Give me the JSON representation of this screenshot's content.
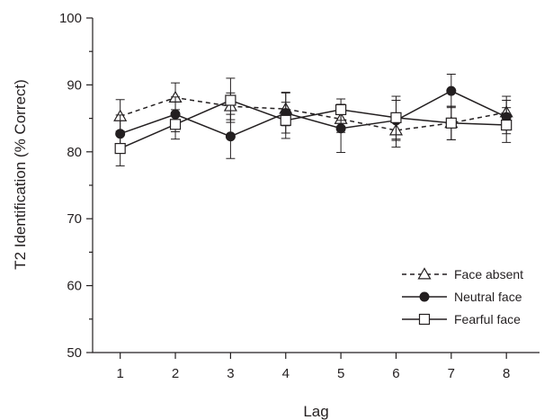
{
  "chart_data": {
    "type": "line",
    "xlabel": "Lag",
    "ylabel": "T2 Identification (% Correct)",
    "x": [
      1,
      2,
      3,
      4,
      5,
      6,
      7,
      8
    ],
    "xlim": [
      0.5,
      8.6
    ],
    "ylim": [
      50,
      100
    ],
    "yticks": [
      50,
      60,
      70,
      80,
      90,
      100
    ],
    "xticks": [
      1,
      2,
      3,
      4,
      5,
      6,
      7,
      8
    ],
    "grid": false,
    "legend_position": "bottom-right",
    "series": [
      {
        "name": "Face absent",
        "marker": "open-triangle",
        "line_style": "dashed",
        "values": [
          85.3,
          88.1,
          86.8,
          86.4,
          84.9,
          83.2,
          84.3,
          85.9
        ],
        "error": [
          2.5,
          2.2,
          2.0,
          2.5,
          2.0,
          2.5,
          2.5,
          2.4
        ]
      },
      {
        "name": "Neutral face",
        "marker": "filled-circle",
        "line_style": "solid",
        "values": [
          82.7,
          85.6,
          82.3,
          85.8,
          83.5,
          84.7,
          89.1,
          85.2
        ],
        "error": [
          2.8,
          2.6,
          3.3,
          3.0,
          3.6,
          3.0,
          2.5,
          2.5
        ]
      },
      {
        "name": "Fearful face",
        "marker": "open-square",
        "line_style": "solid",
        "values": [
          80.5,
          84.1,
          87.7,
          84.7,
          86.3,
          85.1,
          84.3,
          84.0
        ],
        "error": [
          2.6,
          2.2,
          3.3,
          2.7,
          1.6,
          3.2,
          2.5,
          2.6
        ]
      }
    ]
  }
}
